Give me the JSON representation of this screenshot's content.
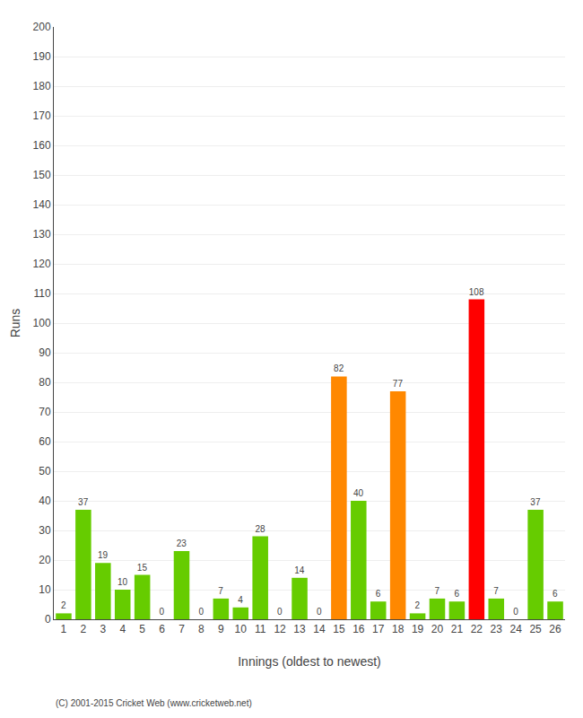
{
  "chart_data": {
    "type": "bar",
    "xlabel": "Innings (oldest to newest)",
    "ylabel": "Runs",
    "categories": [
      "1",
      "2",
      "3",
      "4",
      "5",
      "6",
      "7",
      "8",
      "9",
      "10",
      "11",
      "12",
      "13",
      "14",
      "15",
      "16",
      "17",
      "18",
      "19",
      "20",
      "21",
      "22",
      "23",
      "24",
      "25",
      "26"
    ],
    "values": [
      2,
      37,
      19,
      10,
      15,
      0,
      23,
      0,
      7,
      4,
      28,
      0,
      14,
      0,
      82,
      40,
      6,
      77,
      2,
      7,
      6,
      108,
      7,
      0,
      37,
      6
    ],
    "colors": [
      "#66cc00",
      "#66cc00",
      "#66cc00",
      "#66cc00",
      "#66cc00",
      "#66cc00",
      "#66cc00",
      "#66cc00",
      "#66cc00",
      "#66cc00",
      "#66cc00",
      "#66cc00",
      "#66cc00",
      "#66cc00",
      "#ff8800",
      "#66cc00",
      "#66cc00",
      "#ff8800",
      "#66cc00",
      "#66cc00",
      "#66cc00",
      "#ff0000",
      "#66cc00",
      "#66cc00",
      "#66cc00",
      "#66cc00"
    ],
    "ylim": [
      0,
      200
    ],
    "yticks": [
      0,
      10,
      20,
      30,
      40,
      50,
      60,
      70,
      80,
      90,
      100,
      110,
      120,
      130,
      140,
      150,
      160,
      170,
      180,
      190,
      200
    ],
    "grid": true,
    "data_labels": true,
    "annotations": [
      "(C) 2001-2015 Cricket Web (www.cricketweb.net)"
    ]
  }
}
